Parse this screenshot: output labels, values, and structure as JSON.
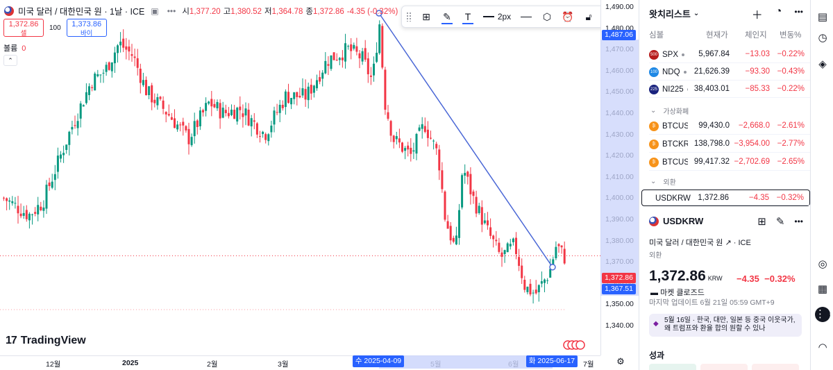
{
  "legend": {
    "title": "미국 달러 / 대한민국 원 · 1날 · ICE",
    "ohlc": [
      {
        "label": "시",
        "value": "1,377.20"
      },
      {
        "label": "고",
        "value": "1,380.52"
      },
      {
        "label": "저",
        "value": "1,364.78"
      },
      {
        "label": "종",
        "value": "1,372.86"
      }
    ],
    "change": "-4.35 (-0.32%)",
    "sell_price": "1,372.86",
    "sell_label": "셀",
    "buy_price": "1,373.86",
    "buy_label": "바이",
    "spread": "100",
    "volume_label": "볼륨",
    "volume_value": "0"
  },
  "toolbar": {
    "width_label": "2px"
  },
  "brand": "TradingView",
  "price_axis": {
    "ticks": [
      "1,490.00",
      "1,480.00",
      "1,470.00",
      "1,460.00",
      "1,450.00",
      "1,440.00",
      "1,430.00",
      "1,420.00",
      "1,410.00",
      "1,400.00",
      "1,390.00",
      "1,380.00",
      "1,370.00",
      "1,360.00",
      "1,350.00",
      "1,340.00"
    ],
    "label_top": "1,487.06",
    "label_current": "1,372.86",
    "label_bottom": "1,367.51"
  },
  "time_axis": {
    "ticks": [
      "12월",
      "2025",
      "2월",
      "3월",
      "5월",
      "6월",
      "7월"
    ],
    "label_start": "수 2025-04-09",
    "label_end": "화 2025-06-17"
  },
  "chart_data": {
    "type": "candlestick",
    "ylim": [
      1335,
      1495
    ],
    "trendline": {
      "start": {
        "date": "2025-04-09",
        "price": 1487.06
      },
      "end": {
        "date": "2025-06-17",
        "price": 1367.51
      }
    },
    "current_price": 1372.86,
    "colors": {
      "up": "#089981",
      "down": "#f23645",
      "trendline": "#4a67d6"
    }
  },
  "watchlist": {
    "title": "왓치리스트",
    "columns": [
      "심볼",
      "현재가",
      "체인지",
      "변동%"
    ],
    "indices": [
      {
        "badge": "500",
        "color": "#b71c1c",
        "symbol": "SPX",
        "last": "5,967.84",
        "chg": "−13.03",
        "pct": "−0.22%"
      },
      {
        "badge": "100",
        "color": "#1e88e5",
        "symbol": "NDQ",
        "last": "21,626.39",
        "chg": "−93.30",
        "pct": "−0.43%"
      },
      {
        "badge": "225",
        "color": "#1a237e",
        "symbol": "NI225",
        "last": "38,403.01",
        "chg": "−85.33",
        "pct": "−0.22%"
      }
    ],
    "crypto_label": "가상화폐",
    "crypto": [
      {
        "badge": "₿",
        "color": "#f7931a",
        "symbol": "BTCUSD",
        "last": "99,430.0",
        "chg": "−2,668.0",
        "pct": "−2.61%"
      },
      {
        "badge": "₿",
        "color": "#f7931a",
        "symbol": "BTCKRW",
        "last": "138,798.0",
        "chg": "−3,954.00",
        "pct": "−2.77%"
      },
      {
        "badge": "₿",
        "color": "#f7931a",
        "symbol": "BTCUSD",
        "last": "99,417.32",
        "chg": "−2,702.69",
        "pct": "−2.65%"
      }
    ],
    "fx_label": "외환",
    "fx": [
      {
        "symbol": "USDKRW",
        "last": "1,372.86",
        "chg": "−4.35",
        "pct": "−0.32%"
      }
    ]
  },
  "detail": {
    "symbol": "USDKRW",
    "name": "미국 달러 / 대한민국 원",
    "exchange": "ICE",
    "category": "외환",
    "price": "1,372.86",
    "currency": "KRW",
    "change": "−4.35",
    "change_pct": "−0.32%",
    "market_status": "마켓 클로즈드",
    "last_update": "마지막 업데이트 6월 21일 05:59 GMT+9",
    "news": "5월 16일 · 한국, 대만, 일본 등 중국 이웃국가, 왜 트럼프와 환율 합의 원할 수 있나",
    "performance_label": "성과"
  }
}
